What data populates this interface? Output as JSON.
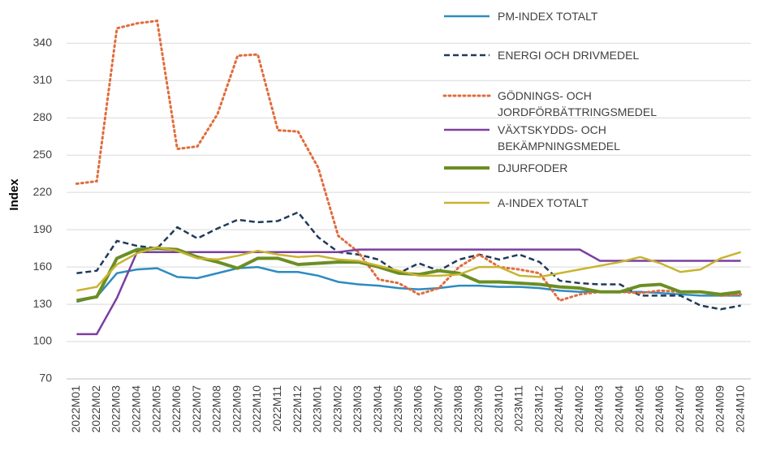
{
  "chart_data": {
    "type": "line",
    "y_label": "Index",
    "categories": [
      "2022M01",
      "2022M02",
      "2022M03",
      "2022M04",
      "2022M05",
      "2022M06",
      "2022M07",
      "2022M08",
      "2022M09",
      "2022M10",
      "2022M11",
      "2022M12",
      "2023M01",
      "2023M02",
      "2023M03",
      "2023M04",
      "2023M05",
      "2023M06",
      "2023M07",
      "2023M08",
      "2023M09",
      "2023M10",
      "2023M11",
      "2023M12",
      "2024M01",
      "2024M02",
      "2024M03",
      "2024M04",
      "2024M05",
      "2024M06",
      "2024M07",
      "2024M08",
      "2024M09",
      "2024M10"
    ],
    "ylim": [
      70,
      365
    ],
    "yticks": [
      70,
      100,
      130,
      160,
      190,
      220,
      250,
      280,
      310,
      340
    ],
    "grid": true,
    "series": [
      {
        "name": "PM-INDEX TOTALT",
        "color": "#2e8bc0",
        "style": "solid",
        "width": 2.5,
        "values": [
          132,
          136,
          155,
          158,
          159,
          152,
          151,
          155,
          159,
          160,
          156,
          156,
          153,
          148,
          146,
          145,
          143,
          142,
          143,
          145,
          145,
          144,
          144,
          143,
          141,
          140,
          140,
          140,
          140,
          139,
          138,
          137,
          137,
          137
        ]
      },
      {
        "name": "ENERGI OCH DRIVMEDEL",
        "color": "#1f3b5a",
        "style": "dashed",
        "width": 2.5,
        "values": [
          155,
          157,
          181,
          177,
          175,
          192,
          183,
          191,
          198,
          196,
          197,
          204,
          184,
          172,
          170,
          166,
          155,
          163,
          157,
          166,
          170,
          166,
          170,
          164,
          149,
          147,
          146,
          146,
          137,
          137,
          137,
          129,
          126,
          129
        ]
      },
      {
        "name": "GÖDNINGS- OCH JORDFÖRBÄTTRINGSMEDEL",
        "color": "#e06c3c",
        "style": "dotted",
        "width": 3,
        "values": [
          227,
          229,
          352,
          356,
          358,
          255,
          257,
          283,
          330,
          331,
          270,
          269,
          240,
          185,
          172,
          150,
          147,
          138,
          143,
          160,
          170,
          160,
          158,
          155,
          133,
          138,
          140,
          140,
          139,
          141,
          140,
          140,
          137,
          138
        ]
      },
      {
        "name": "VÄXTSKYDDS- OCH BEKÄMPNINGSMEDEL",
        "color": "#7b3fa0",
        "style": "solid",
        "width": 2.5,
        "values": [
          106,
          106,
          135,
          172,
          172,
          172,
          172,
          172,
          172,
          172,
          172,
          172,
          172,
          172,
          174,
          174,
          174,
          174,
          174,
          174,
          174,
          174,
          174,
          174,
          174,
          174,
          165,
          165,
          165,
          165,
          165,
          165,
          165,
          165
        ]
      },
      {
        "name": "DJURFODER",
        "color": "#6b8e23",
        "style": "solid",
        "width": 4,
        "values": [
          133,
          136,
          167,
          174,
          175,
          174,
          168,
          164,
          159,
          167,
          167,
          162,
          163,
          164,
          164,
          160,
          155,
          154,
          157,
          155,
          148,
          148,
          147,
          146,
          144,
          143,
          140,
          140,
          145,
          146,
          140,
          140,
          138,
          140
        ]
      },
      {
        "name": "A-INDEX TOTALT",
        "color": "#c8b430",
        "style": "solid",
        "width": 2.5,
        "values": [
          141,
          144,
          162,
          171,
          176,
          173,
          167,
          166,
          169,
          173,
          170,
          168,
          169,
          166,
          165,
          161,
          157,
          153,
          153,
          154,
          160,
          160,
          153,
          152,
          155,
          158,
          161,
          164,
          168,
          163,
          156,
          158,
          167,
          172
        ]
      }
    ]
  }
}
